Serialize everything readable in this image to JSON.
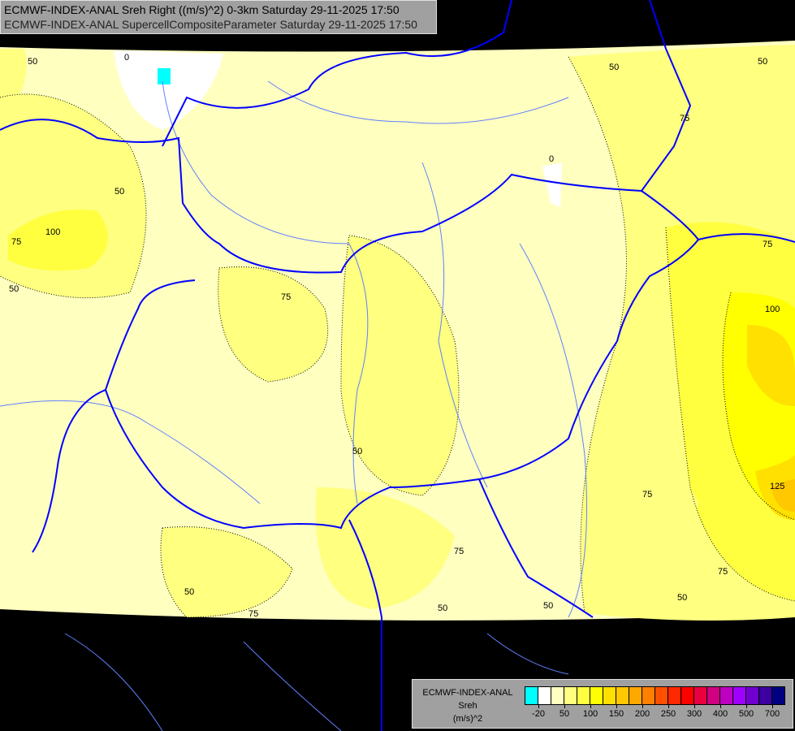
{
  "title": {
    "line1": "ECMWF-INDEX-ANAL Sreh Right ((m/s)^2) 0-3km Saturday 29-11-2025 17:50",
    "line2": "ECMWF-INDEX-ANAL SupercellCompositeParameter Saturday 29-11-2025 17:50"
  },
  "legend": {
    "model": "ECMWF-INDEX-ANAL",
    "parameter": "Sreh",
    "unit": "(m/s)^2",
    "colors": [
      "#00ffff",
      "#ffffff",
      "#ffffc0",
      "#ffff80",
      "#ffff40",
      "#ffff00",
      "#ffe000",
      "#ffc800",
      "#ffa800",
      "#ff8000",
      "#ff5000",
      "#ff2800",
      "#ff0000",
      "#e80040",
      "#d00080",
      "#c000c0",
      "#a000ff",
      "#7000d0",
      "#3c00a0",
      "#000080"
    ],
    "ticks": [
      "-20",
      "50",
      "100",
      "150",
      "200",
      "250",
      "300",
      "400",
      "500",
      "700"
    ]
  },
  "map": {
    "contour_labels": [
      "0",
      "50",
      "50",
      "50",
      "75",
      "0",
      "50",
      "100",
      "75",
      "50",
      "75",
      "100",
      "75",
      "50",
      "125",
      "75",
      "75",
      "75",
      "50",
      "50",
      "50",
      "75",
      "50"
    ],
    "border_color": "#0000ff",
    "river_color": "#6080ff"
  }
}
